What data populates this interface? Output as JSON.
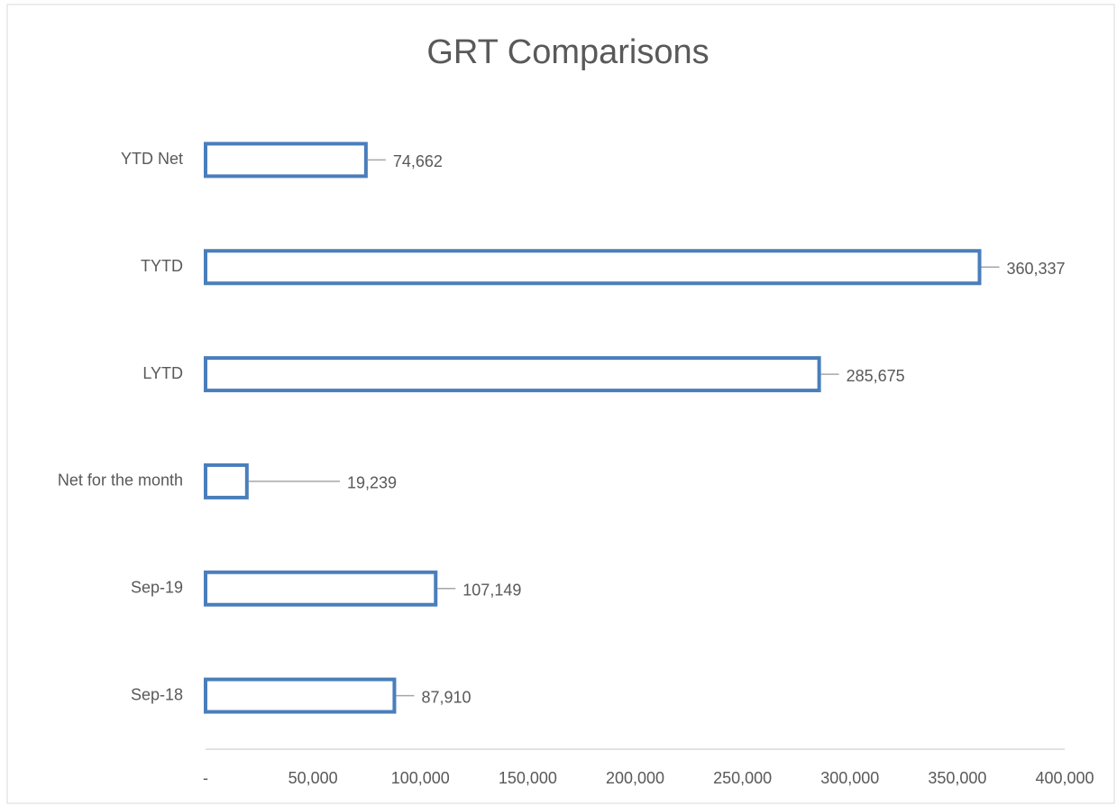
{
  "chart_data": {
    "type": "barh",
    "title": "GRT Comparisons",
    "categories": [
      "YTD Net",
      "TYTD",
      "LYTD",
      "Net for the month",
      "Sep-19",
      "Sep-18"
    ],
    "values": [
      74662,
      360337,
      285675,
      19239,
      107149,
      87910
    ],
    "value_labels": [
      "74,662",
      "360,337",
      "285,675",
      "19,239",
      "107,149",
      "87,910"
    ],
    "color": "#4a7ebb",
    "xlim": [
      0,
      400000
    ],
    "xticks": [
      {
        "value": 0,
        "label": "-"
      },
      {
        "value": 50000,
        "label": "50,000"
      },
      {
        "value": 100000,
        "label": "100,000"
      },
      {
        "value": 150000,
        "label": "150,000"
      },
      {
        "value": 200000,
        "label": "200,000"
      },
      {
        "value": 250000,
        "label": "250,000"
      },
      {
        "value": 300000,
        "label": "300,000"
      },
      {
        "value": 350000,
        "label": "350,000"
      },
      {
        "value": 400000,
        "label": "400,000"
      }
    ],
    "grid": false
  }
}
